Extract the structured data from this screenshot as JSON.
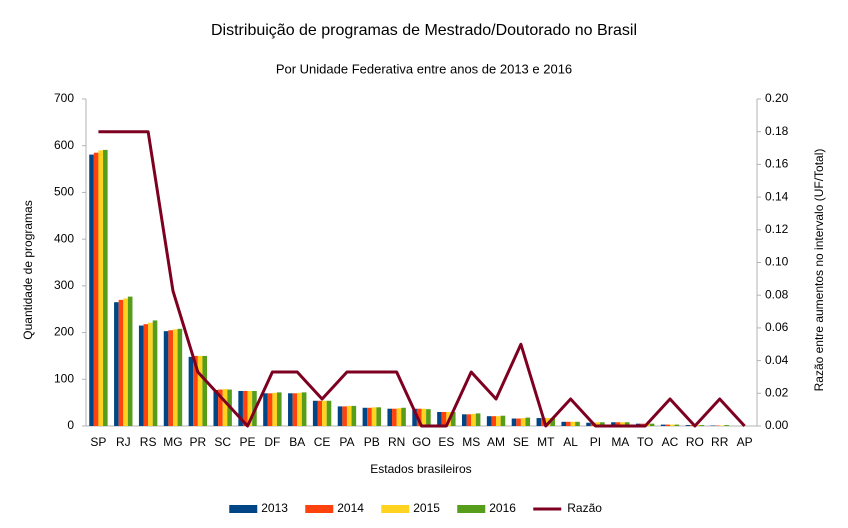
{
  "chart_data": {
    "type": "bar",
    "title": "Distribuição de programas de Mestrado/Doutorado no Brasil",
    "subtitle": "Por Unidade Federativa entre anos de 2013 e 2016",
    "x_label": "Estados brasileiros",
    "y_label": "Quantidade de programas",
    "y2_label": "Razão entre aumentos no intervalo (UF/Total)",
    "categories": [
      "SP",
      "RJ",
      "RS",
      "MG",
      "PR",
      "SC",
      "PE",
      "DF",
      "BA",
      "CE",
      "PA",
      "PB",
      "RN",
      "GO",
      "ES",
      "MS",
      "AM",
      "SE",
      "MT",
      "AL",
      "PI",
      "MA",
      "TO",
      "AC",
      "RO",
      "RR",
      "AP"
    ],
    "series": [
      {
        "name": "2013",
        "color": "#004586",
        "values": [
          581,
          265,
          215,
          203,
          148,
          77,
          75,
          70,
          70,
          54,
          42,
          39,
          37,
          37,
          30,
          25,
          21,
          16,
          17,
          9,
          7,
          8,
          5,
          3,
          2,
          1,
          0
        ]
      },
      {
        "name": "2014",
        "color": "#ff420e",
        "values": [
          585,
          270,
          218,
          205,
          150,
          78,
          75,
          70,
          70,
          54,
          42,
          39,
          37,
          37,
          30,
          25,
          21,
          16,
          17,
          9,
          7,
          8,
          5,
          3,
          2,
          1,
          0
        ]
      },
      {
        "name": "2015",
        "color": "#ffd320",
        "values": [
          590,
          273,
          221,
          207,
          150,
          79,
          75,
          71,
          71,
          54,
          43,
          40,
          38,
          37,
          30,
          26,
          21,
          17,
          17,
          9,
          8,
          8,
          5,
          3,
          2,
          1,
          0
        ]
      },
      {
        "name": "2016",
        "color": "#579d1c",
        "values": [
          591,
          277,
          226,
          208,
          150,
          78,
          75,
          72,
          72,
          54,
          43,
          40,
          39,
          36,
          30,
          27,
          22,
          18,
          17,
          9,
          8,
          8,
          5,
          3,
          2,
          2,
          0
        ]
      },
      {
        "name": "Razão",
        "color": "#7e0021",
        "type": "line",
        "axis": "y2",
        "values": [
          0.18,
          0.18,
          0.18,
          0.0826,
          0.033,
          0.0165,
          0,
          0.033,
          0.033,
          0.0165,
          0.033,
          0.033,
          0.033,
          0,
          0,
          0.033,
          0.0165,
          0.05,
          0,
          0.0165,
          0,
          0,
          0,
          0.0165,
          0,
          0.0165,
          0
        ]
      }
    ],
    "ylim": [
      0,
      700
    ],
    "yticks": [
      0,
      100,
      200,
      300,
      400,
      500,
      600,
      700
    ],
    "y2lim": [
      0,
      0.2
    ],
    "y2ticks": [
      {
        "value": 0,
        "label": "0.00"
      },
      {
        "value": 0.02,
        "label": "0.02"
      },
      {
        "value": 0.04,
        "label": "0.04"
      },
      {
        "value": 0.06,
        "label": "0.06"
      },
      {
        "value": 0.08,
        "label": "0.08"
      },
      {
        "value": 0.1,
        "label": "0.10"
      },
      {
        "value": 0.12,
        "label": "0.12"
      },
      {
        "value": 0.14,
        "label": "0.14"
      },
      {
        "value": 0.16,
        "label": "0.16"
      },
      {
        "value": 0.18,
        "label": "0.18"
      },
      {
        "value": 0.2,
        "label": "0.20"
      }
    ],
    "grid": false,
    "legend": "bottom"
  }
}
